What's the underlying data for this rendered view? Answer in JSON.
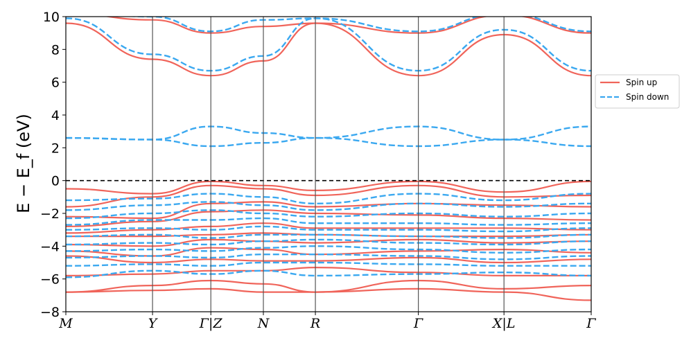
{
  "chart_data": {
    "type": "line",
    "ylabel": "E − E_f (eV)",
    "ylim": [
      -8,
      10
    ],
    "yticks": [
      "−8",
      "−6",
      "−4",
      "−2",
      "0",
      "2",
      "4",
      "6",
      "8",
      "10"
    ],
    "ytick_values": [
      -8,
      -6,
      -4,
      -2,
      0,
      2,
      4,
      6,
      8,
      10
    ],
    "xlim": [
      0,
      1
    ],
    "high_symmetry_points": [
      {
        "label": "M",
        "x": 0.0
      },
      {
        "label": "Y",
        "x": 0.165
      },
      {
        "label": "Γ|Z",
        "x": 0.276
      },
      {
        "label": "N",
        "x": 0.376
      },
      {
        "label": "R",
        "x": 0.475
      },
      {
        "label": "Γ",
        "x": 0.671
      },
      {
        "label": "X|L",
        "x": 0.834
      },
      {
        "label": "Γ",
        "x": 1.0
      }
    ],
    "fermi_level": 0,
    "legend": {
      "placement": "right, outside",
      "entries": [
        "Spin up",
        "Spin down"
      ]
    },
    "colors": {
      "spin_up": "#f0645a",
      "spin_down": "#3aa8f0",
      "fermi": "#000000",
      "vline": "#555555"
    },
    "series": [
      {
        "name": "Spin up",
        "style": "solid",
        "bands": [
          [
            9.6,
            7.4,
            6.4,
            7.3,
            9.6,
            6.4,
            8.9,
            6.4
          ],
          [
            10.2,
            9.8,
            9.0,
            9.4,
            9.6,
            9.0,
            10.1,
            9.0
          ],
          [
            -0.5,
            -0.8,
            -0.05,
            -0.3,
            -0.6,
            -0.05,
            -0.7,
            -0.05
          ],
          [
            -1.6,
            -1.0,
            -0.3,
            -0.5,
            -0.9,
            -0.3,
            -1.0,
            -0.9
          ],
          [
            -2.2,
            -2.3,
            -1.4,
            -1.3,
            -1.6,
            -1.4,
            -1.5,
            -1.6
          ],
          [
            -2.8,
            -2.5,
            -1.9,
            -1.8,
            -2.0,
            -2.1,
            -2.3,
            -2.4
          ],
          [
            -3.2,
            -3.0,
            -2.8,
            -2.6,
            -2.9,
            -2.9,
            -2.9,
            -3.0
          ],
          [
            -3.4,
            -3.4,
            -3.3,
            -3.2,
            -3.3,
            -3.4,
            -3.4,
            -3.3
          ],
          [
            -3.9,
            -4.0,
            -3.6,
            -3.7,
            -3.8,
            -3.6,
            -3.8,
            -3.7
          ],
          [
            -4.3,
            -4.6,
            -4.1,
            -4.2,
            -4.5,
            -4.3,
            -4.2,
            -4.4
          ],
          [
            -4.6,
            -5.0,
            -4.8,
            -4.9,
            -4.9,
            -4.7,
            -5.0,
            -4.8
          ],
          [
            -5.8,
            -5.7,
            -5.5,
            -5.5,
            -5.3,
            -5.6,
            -5.8,
            -5.8
          ],
          [
            -6.8,
            -6.4,
            -6.1,
            -6.3,
            -6.8,
            -6.1,
            -6.6,
            -6.4
          ],
          [
            -6.8,
            -6.7,
            -6.6,
            -6.8,
            -6.8,
            -6.6,
            -6.8,
            -7.3
          ]
        ]
      },
      {
        "name": "Spin down",
        "style": "dashed",
        "bands": [
          [
            9.9,
            7.7,
            6.7,
            7.6,
            9.9,
            6.7,
            9.2,
            6.7
          ],
          [
            10.3,
            10.0,
            9.1,
            9.8,
            9.9,
            9.1,
            10.2,
            9.1
          ],
          [
            2.6,
            2.5,
            3.3,
            2.9,
            2.6,
            3.3,
            2.5,
            3.3
          ],
          [
            2.6,
            2.5,
            2.1,
            2.3,
            2.6,
            2.1,
            2.5,
            2.1
          ],
          [
            -1.2,
            -1.1,
            -0.8,
            -1.0,
            -1.4,
            -0.8,
            -1.2,
            -0.8
          ],
          [
            -1.8,
            -1.5,
            -1.3,
            -1.5,
            -1.8,
            -1.4,
            -1.6,
            -1.4
          ],
          [
            -2.3,
            -2.0,
            -1.8,
            -2.0,
            -2.2,
            -2.0,
            -2.2,
            -2.0
          ],
          [
            -2.7,
            -2.4,
            -2.4,
            -2.3,
            -2.6,
            -2.6,
            -2.7,
            -2.6
          ],
          [
            -3.0,
            -2.9,
            -3.0,
            -2.8,
            -3.0,
            -3.0,
            -3.1,
            -2.9
          ],
          [
            -3.4,
            -3.3,
            -3.5,
            -3.3,
            -3.3,
            -3.4,
            -3.5,
            -3.3
          ],
          [
            -3.9,
            -3.8,
            -3.9,
            -3.7,
            -3.6,
            -3.8,
            -3.9,
            -3.7
          ],
          [
            -4.3,
            -4.2,
            -4.3,
            -4.1,
            -4.0,
            -4.2,
            -4.4,
            -4.2
          ],
          [
            -4.7,
            -4.6,
            -4.7,
            -4.5,
            -4.5,
            -4.6,
            -4.8,
            -4.6
          ],
          [
            -5.2,
            -5.1,
            -5.2,
            -5.0,
            -5.0,
            -5.1,
            -5.2,
            -5.2
          ],
          [
            -5.9,
            -5.5,
            -5.7,
            -5.5,
            -5.8,
            -5.7,
            -5.6,
            -5.8
          ]
        ]
      }
    ]
  }
}
